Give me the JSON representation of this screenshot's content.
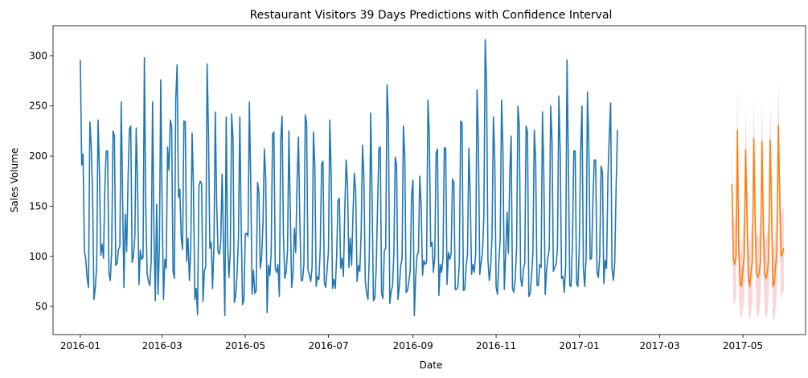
{
  "chart_data": {
    "type": "line",
    "title": "Restaurant Visitors 39 Days Predictions with Confidence Interval",
    "xlabel": "Date",
    "ylabel": "Sales Volume",
    "xlim": [
      "2015-12-12",
      "2017-06-16"
    ],
    "ylim": [
      22,
      330
    ],
    "grid": false,
    "x_ticks": [
      "2016-01",
      "2016-03",
      "2016-05",
      "2016-07",
      "2016-09",
      "2016-11",
      "2017-01",
      "2017-03",
      "2017-05"
    ],
    "y_ticks": [
      50,
      100,
      150,
      200,
      250,
      300
    ],
    "colors": {
      "historical": "#1f77b4",
      "forecast": "#ff7f0e",
      "confidence": "#f4a3a8"
    },
    "series": [
      {
        "start": "2016-01-01",
        "values": [
          296,
          191,
          202,
          105,
          97,
          78,
          69,
          234,
          210,
          161,
          57,
          69,
          90,
          236,
          187,
          101,
          112,
          98,
          170,
          205,
          205,
          83,
          76,
          105,
          225,
          220,
          91,
          93,
          107,
          110,
          254,
          160,
          69,
          142,
          105,
          176,
          227,
          230,
          94,
          100,
          120,
          228,
          171,
          72,
          106,
          97,
          99,
          298,
          150,
          83,
          75,
          71,
          96,
          254,
          125,
          56,
          152,
          62,
          109,
          276,
          150,
          57,
          97,
          88,
          209,
          186,
          236,
          229,
          85,
          78,
          256,
          291,
          159,
          167,
          119,
          107,
          235,
          234,
          95,
          118,
          76,
          107,
          223,
          168,
          57,
          68,
          42,
          170,
          175,
          172,
          55,
          85,
          90,
          292,
          223,
          108,
          114,
          68,
          110,
          244,
          154,
          105,
          102,
          114,
          182,
          114,
          41,
          239,
          114,
          79,
          104,
          242,
          218,
          54,
          61,
          83,
          120,
          239,
          130,
          52,
          57,
          122,
          123,
          120,
          254,
          174,
          62,
          86,
          63,
          66,
          174,
          164,
          88,
          99,
          134,
          207,
          178,
          44,
          91,
          81,
          103,
          222,
          224,
          88,
          84,
          92,
          60,
          216,
          240,
          121,
          78,
          85,
          106,
          225,
          146,
          69,
          82,
          128,
          104,
          176,
          219,
          136,
          76,
          76,
          92,
          241,
          233,
          87,
          81,
          75,
          89,
          224,
          191,
          70,
          80,
          77,
          108,
          192,
          195,
          74,
          69,
          86,
          105,
          236,
          182,
          68,
          77,
          68,
          99,
          155,
          158,
          88,
          98,
          80,
          147,
          196,
          171,
          89,
          118,
          91,
          142,
          183,
          165,
          75,
          91,
          85,
          123,
          211,
          179,
          76,
          63,
          57,
          102,
          243,
          160,
          56,
          58,
          87,
          147,
          208,
          209,
          63,
          58,
          106,
          108,
          271,
          235,
          53,
          65,
          70,
          103,
          199,
          191,
          57,
          70,
          90,
          98,
          230,
          199,
          64,
          66,
          75,
          86,
          162,
          176,
          41,
          79,
          101,
          104,
          180,
          150,
          81,
          96,
          92,
          94,
          256,
          220,
          110,
          114,
          84,
          100,
          203,
          207,
          61,
          92,
          84,
          98,
          208,
          208,
          72,
          104,
          97,
          103,
          177,
          174,
          67,
          67,
          70,
          93,
          235,
          233,
          66,
          67,
          90,
          102,
          208,
          160,
          82,
          92,
          84,
          103,
          266,
          215,
          82,
          94,
          104,
          140,
          316,
          270,
          96,
          76,
          90,
          120,
          239,
          196,
          69,
          62,
          94,
          118,
          256,
          207,
          67,
          102,
          144,
          103,
          181,
          220,
          68,
          64,
          77,
          109,
          250,
          230,
          78,
          70,
          87,
          93,
          230,
          224,
          60,
          63,
          80,
          105,
          226,
          196,
          71,
          71,
          92,
          89,
          244,
          180,
          62,
          86,
          99,
          108,
          250,
          215,
          85,
          89,
          92,
          108,
          260,
          204,
          78,
          80,
          64,
          91,
          296,
          195,
          71,
          70,
          115,
          205,
          205,
          73,
          70,
          108,
          205,
          250,
          88,
          70,
          98,
          264,
          210,
          97,
          98,
          156,
          196,
          196,
          84,
          79,
          101,
          190,
          184,
          73,
          96,
          88,
          178,
          220,
          253,
          88,
          76,
          94,
          167,
          226
        ]
      },
      {
        "start": "2017-04-23",
        "values": [
          172,
          97,
          92,
          100,
          226,
          105,
          73,
          70,
          87,
          100,
          206,
          141,
          82,
          70,
          85,
          95,
          218,
          136,
          83,
          79,
          84,
          96,
          215,
          130,
          82,
          78,
          84,
          100,
          216,
          152,
          70,
          73,
          90,
          104,
          231,
          161,
          100,
          103,
          108
        ]
      }
    ],
    "confidence_interval": {
      "start": "2017-04-23",
      "lower": [
        132,
        55,
        52,
        58,
        186,
        63,
        42,
        38,
        47,
        58,
        166,
        100,
        44,
        35,
        45,
        54,
        178,
        95,
        44,
        38,
        45,
        55,
        175,
        90,
        45,
        37,
        43,
        60,
        175,
        112,
        36,
        37,
        48,
        62,
        190,
        120,
        58,
        62,
        66
      ],
      "upper": [
        212,
        140,
        132,
        143,
        270,
        147,
        105,
        102,
        127,
        142,
        250,
        182,
        121,
        105,
        125,
        137,
        262,
        178,
        122,
        119,
        124,
        138,
        258,
        171,
        120,
        117,
        125,
        142,
        258,
        194,
        108,
        110,
        131,
        146,
        278,
        203,
        142,
        145,
        150
      ]
    }
  }
}
